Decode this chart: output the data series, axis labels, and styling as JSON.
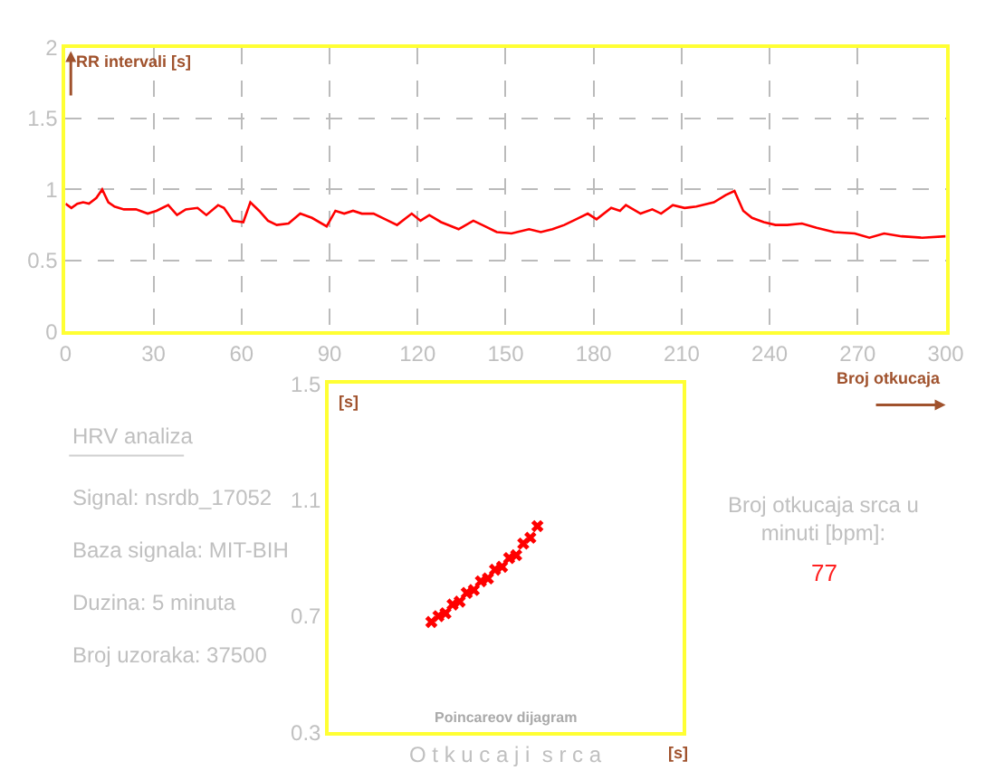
{
  "chart_data": [
    {
      "type": "line",
      "xlabel": "Broj otkucaja",
      "ylabel": "RR intervali [s]",
      "xlim": [
        0,
        300
      ],
      "ylim": [
        0,
        2
      ],
      "xticks": [
        0,
        30,
        60,
        90,
        120,
        150,
        180,
        210,
        240,
        270,
        300
      ],
      "yticks": [
        0,
        0.5,
        1,
        1.5,
        2
      ],
      "grid": true,
      "line_style": "solid",
      "marker": "none",
      "series": [
        {
          "color": "#ff0000",
          "x": [
            0,
            2,
            4,
            6,
            8,
            10.5,
            12.5,
            14.6,
            16.7,
            19.9,
            24,
            28,
            31,
            35,
            38,
            41,
            45,
            48,
            52,
            54,
            57,
            60.6,
            63,
            66,
            69,
            72,
            76,
            80,
            84,
            89,
            92,
            95,
            98,
            101,
            105,
            109,
            113,
            118,
            121,
            124,
            128,
            134,
            139,
            143,
            147,
            152,
            158,
            162,
            166,
            170,
            174,
            178,
            181,
            186,
            189,
            191,
            196,
            200,
            203,
            207,
            211,
            215,
            221,
            225,
            228,
            231,
            234,
            238,
            242,
            246,
            251,
            256,
            262,
            269,
            274,
            279,
            285,
            292,
            300
          ],
          "values": [
            0.9,
            0.87,
            0.9,
            0.91,
            0.9,
            0.94,
            1.0,
            0.91,
            0.88,
            0.86,
            0.86,
            0.83,
            0.85,
            0.89,
            0.82,
            0.86,
            0.87,
            0.82,
            0.89,
            0.87,
            0.78,
            0.77,
            0.91,
            0.85,
            0.78,
            0.75,
            0.76,
            0.83,
            0.8,
            0.74,
            0.85,
            0.83,
            0.85,
            0.83,
            0.83,
            0.79,
            0.75,
            0.83,
            0.78,
            0.82,
            0.77,
            0.72,
            0.78,
            0.74,
            0.7,
            0.69,
            0.72,
            0.7,
            0.72,
            0.75,
            0.79,
            0.83,
            0.79,
            0.87,
            0.85,
            0.89,
            0.83,
            0.86,
            0.83,
            0.89,
            0.87,
            0.88,
            0.91,
            0.96,
            0.99,
            0.85,
            0.8,
            0.77,
            0.75,
            0.75,
            0.76,
            0.73,
            0.7,
            0.69,
            0.66,
            0.69,
            0.67,
            0.66,
            0.67
          ]
        }
      ]
    },
    {
      "type": "scatter",
      "title": "Poincareov dijagram",
      "xlabel": "[s]",
      "ylabel": "[s]",
      "annotations": [
        "O t k u c a j i  s r c a"
      ],
      "categories": [
        null,
        null,
        null,
        null,
        null,
        null,
        null,
        null,
        null,
        null,
        null,
        null,
        null,
        null,
        null,
        null,
        null,
        null,
        null,
        null,
        null,
        null,
        null,
        null,
        null,
        null,
        null,
        null,
        null,
        null,
        null,
        null,
        null,
        null,
        null,
        null,
        null,
        null,
        null,
        null,
        null,
        null,
        null,
        null,
        null,
        null,
        null,
        null,
        null,
        null
      ],
      "ylim": [
        0.3,
        1.5
      ],
      "yticks": [
        0.3,
        0.7,
        1.1,
        1.5
      ],
      "tick_labels": "y",
      "marker": "cross",
      "series": [
        {
          "color": "#ff0000",
          "values": [
            null,
            null,
            null,
            null,
            null,
            null,
            null,
            null,
            null,
            null,
            null,
            null,
            null,
            null,
            0.68,
            0.7,
            0.71,
            0.74,
            0.75,
            0.78,
            0.79,
            0.82,
            0.83,
            0.86,
            0.87,
            0.9,
            0.91,
            0.95,
            0.97,
            1.01,
            null,
            null,
            null,
            null,
            null,
            null,
            null,
            null,
            null,
            null,
            null,
            null,
            null,
            null,
            null,
            null,
            null,
            null,
            null,
            null
          ]
        }
      ]
    },
    {
      "type": "other",
      "title": "HRV analiza",
      "annotations": [
        "Signal: nsrdb_17052",
        "Baza signala: MIT-BIH",
        "Duzina: 5 minuta",
        "Broj uzoraka: 37500"
      ]
    },
    {
      "type": "other",
      "title": "Broj otkucaja srca u minuti [bpm]:",
      "annotations": [
        "77"
      ]
    }
  ]
}
